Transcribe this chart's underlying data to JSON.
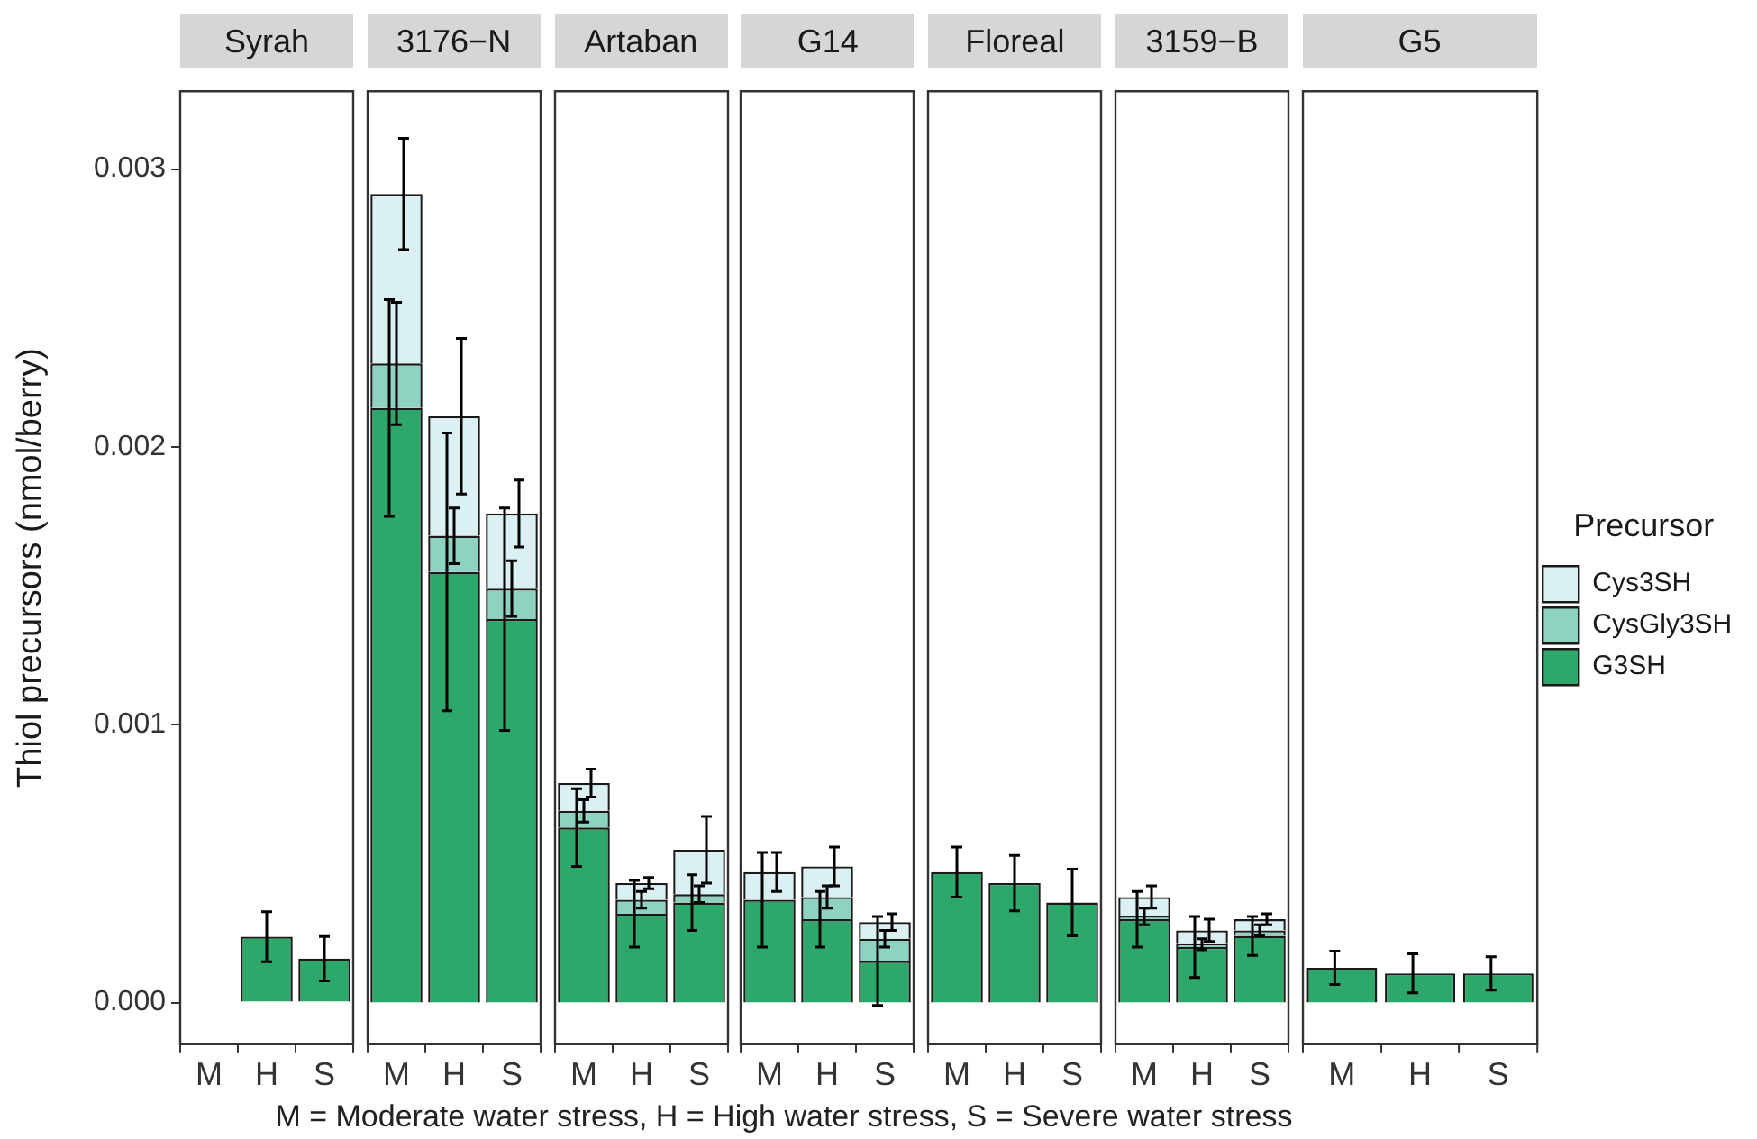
{
  "chart_data": [
    {
      "type": "bar",
      "title": "Syrah",
      "ylabel": "Thiol precursors (nmol/berry)",
      "annotations": [
        "M = Moderate water stress, H = High water stress, S = Severe water stress"
      ],
      "categories": [
        "M",
        "H",
        "S"
      ],
      "stacked": true,
      "grid": false,
      "ylim": [
        -0.00015,
        0.00328
      ],
      "yticks": [
        {
          "value": 0,
          "label": "0.000"
        },
        {
          "value": 0.001,
          "label": "0.001"
        },
        {
          "value": 0.002,
          "label": "0.002"
        },
        {
          "value": 0.003,
          "label": "0.003"
        }
      ],
      "series": [
        {
          "color": "#2ea86a",
          "values": [
            null,
            0.000237,
            0.000158
          ],
          "errors": [
            null,
            9e-05,
            8e-05
          ]
        }
      ]
    },
    {
      "type": "bar",
      "title": "3176−N",
      "categories": [
        "M",
        "H",
        "S"
      ],
      "stacked": true,
      "grid": false,
      "tick_labels": "x",
      "ylim": [
        -0.00015,
        0.00328
      ],
      "series": [
        {
          "color": "#2ea86a",
          "values": [
            0.00214,
            0.00155,
            0.00138
          ],
          "errors": [
            0.00039,
            0.0005,
            0.0004
          ]
        },
        {
          "color": "#8ed3c1",
          "values": [
            0.00016,
            0.00013,
            0.00011
          ],
          "errors": [
            0.00022,
            0.0001,
            0.0001
          ]
        },
        {
          "color": "#daf0f3",
          "values": [
            0.00061,
            0.00043,
            0.00027
          ],
          "errors": [
            0.0002,
            0.00028,
            0.00012
          ]
        }
      ]
    },
    {
      "type": "bar",
      "title": "Artaban",
      "categories": [
        "M",
        "H",
        "S"
      ],
      "stacked": true,
      "grid": false,
      "tick_labels": "x",
      "ylim": [
        -0.00015,
        0.00328
      ],
      "series": [
        {
          "color": "#2ea86a",
          "values": [
            0.00063,
            0.00032,
            0.00036
          ],
          "errors": [
            0.00014,
            0.00012,
            0.0001
          ]
        },
        {
          "color": "#8ed3c1",
          "values": [
            6e-05,
            5e-05,
            3e-05
          ],
          "errors": [
            4e-05,
            3e-05,
            3e-05
          ]
        },
        {
          "color": "#daf0f3",
          "values": [
            0.0001,
            6e-05,
            0.00016
          ],
          "errors": [
            5e-05,
            2e-05,
            0.00012
          ]
        }
      ]
    },
    {
      "type": "bar",
      "title": "G14",
      "categories": [
        "M",
        "H",
        "S"
      ],
      "stacked": true,
      "grid": false,
      "tick_labels": "x",
      "ylim": [
        -0.00015,
        0.00328
      ],
      "series": [
        {
          "color": "#2ea86a",
          "values": [
            0.00037,
            0.0003,
            0.00015
          ],
          "errors": [
            0.00017,
            0.0001,
            0.00016
          ]
        },
        {
          "color": "#8ed3c1",
          "values": [
            0,
            8e-05,
            8e-05
          ],
          "errors": [
            null,
            4e-05,
            3e-05
          ]
        },
        {
          "color": "#daf0f3",
          "values": [
            0.0001,
            0.00011,
            6e-05
          ],
          "errors": [
            7e-05,
            7e-05,
            3e-05
          ]
        }
      ]
    },
    {
      "type": "bar",
      "title": "Floreal",
      "categories": [
        "M",
        "H",
        "S"
      ],
      "stacked": true,
      "grid": false,
      "tick_labels": "x",
      "ylim": [
        -0.00015,
        0.00328
      ],
      "series": [
        {
          "color": "#2ea86a",
          "values": [
            0.00047,
            0.00043,
            0.00036
          ],
          "errors": [
            9e-05,
            0.0001,
            0.00012
          ]
        }
      ]
    },
    {
      "type": "bar",
      "title": "3159−B",
      "categories": [
        "M",
        "H",
        "S"
      ],
      "stacked": true,
      "grid": false,
      "tick_labels": "x",
      "ylim": [
        -0.00015,
        0.00328
      ],
      "series": [
        {
          "color": "#2ea86a",
          "values": [
            0.0003,
            0.0002,
            0.00024
          ],
          "errors": [
            0.0001,
            0.00011,
            7e-05
          ]
        },
        {
          "color": "#8ed3c1",
          "values": [
            1e-05,
            1e-05,
            2e-05
          ],
          "errors": [
            3e-05,
            2e-05,
            2e-05
          ]
        },
        {
          "color": "#daf0f3",
          "values": [
            7e-05,
            5e-05,
            4e-05
          ],
          "errors": [
            4e-05,
            4e-05,
            2e-05
          ]
        }
      ]
    },
    {
      "type": "bar",
      "title": "G5",
      "categories": [
        "M",
        "H",
        "S"
      ],
      "stacked": true,
      "grid": false,
      "tick_labels": "x",
      "legend": "right",
      "legend_title": "Precursor",
      "ylim": [
        -0.00015,
        0.00328
      ],
      "series": [
        {
          "name": "G3SH",
          "color": "#2ea86a",
          "values": [
            0.000125,
            0.000105,
            0.000105
          ],
          "errors": [
            6e-05,
            7e-05,
            6e-05
          ]
        },
        {
          "name": "CysGly3SH",
          "color": "#8ed3c1",
          "values": [
            null,
            null,
            null
          ]
        },
        {
          "name": "Cys3SH",
          "color": "#daf0f3",
          "values": [
            null,
            null,
            null
          ]
        }
      ]
    }
  ]
}
